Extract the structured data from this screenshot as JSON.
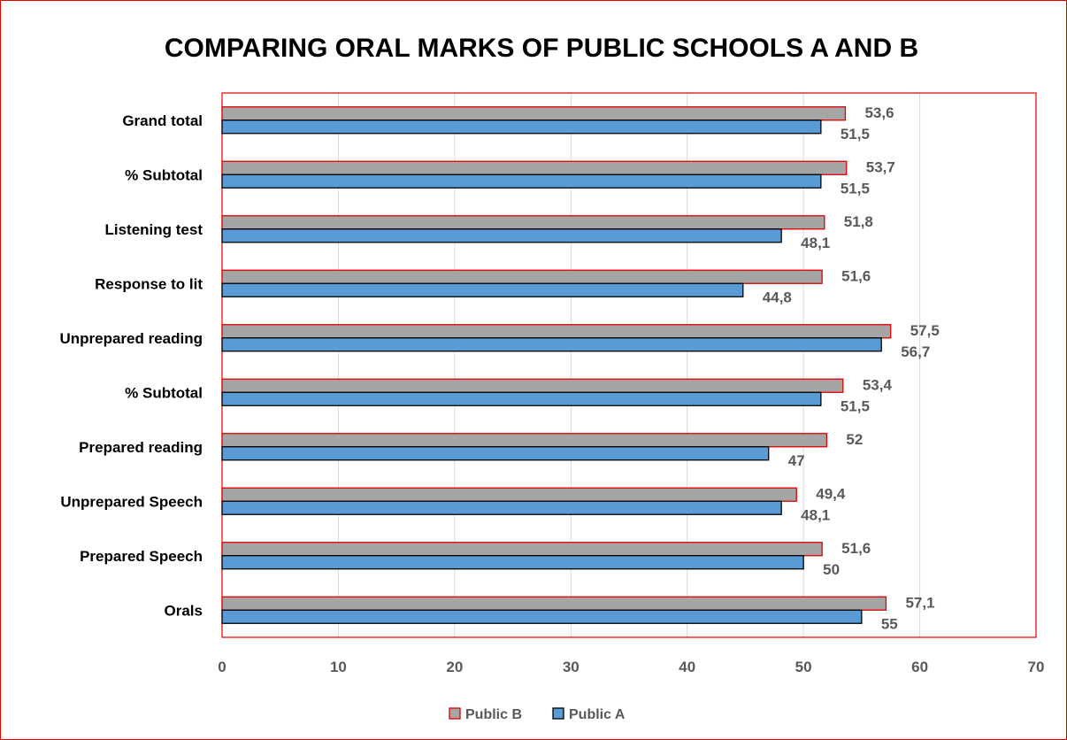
{
  "chart_data": {
    "type": "bar",
    "orientation": "horizontal",
    "title": "COMPARING ORAL MARKS OF PUBLIC SCHOOLS A AND B",
    "categories": [
      "Orals",
      "Prepared Speech",
      "Unprepared Speech",
      "Prepared reading",
      "% Subtotal",
      "Unprepared reading",
      "Response  to lit",
      "Listening test",
      "% Subtotal",
      "Grand total"
    ],
    "series": [
      {
        "name": "Public B",
        "values": [
          57.1,
          51.6,
          49.4,
          52,
          53.4,
          57.5,
          51.6,
          51.8,
          53.7,
          53.6
        ],
        "labels": [
          "57,1",
          "51,6",
          "49,4",
          "52",
          "53,4",
          "57,5",
          "51,6",
          "51,8",
          "53,7",
          "53,6"
        ],
        "fill": "#a5a5a5",
        "stroke": "#e00000"
      },
      {
        "name": "Public A",
        "values": [
          55,
          50,
          48.1,
          47,
          51.5,
          56.7,
          44.8,
          48.1,
          51.5,
          51.5
        ],
        "labels": [
          "55",
          "50",
          "48,1",
          "47",
          "51,5",
          "56,7",
          "44,8",
          "48,1",
          "51,5",
          "51,5"
        ],
        "fill": "#5b9bd5",
        "stroke": "#000000"
      }
    ],
    "xlim": [
      0,
      70
    ],
    "xticks": [
      0,
      10,
      20,
      30,
      40,
      50,
      60,
      70
    ],
    "grid": "vertical",
    "legend": "bottom",
    "colors": {
      "border": "#e00000",
      "gridline": "#d9d9d9"
    }
  }
}
